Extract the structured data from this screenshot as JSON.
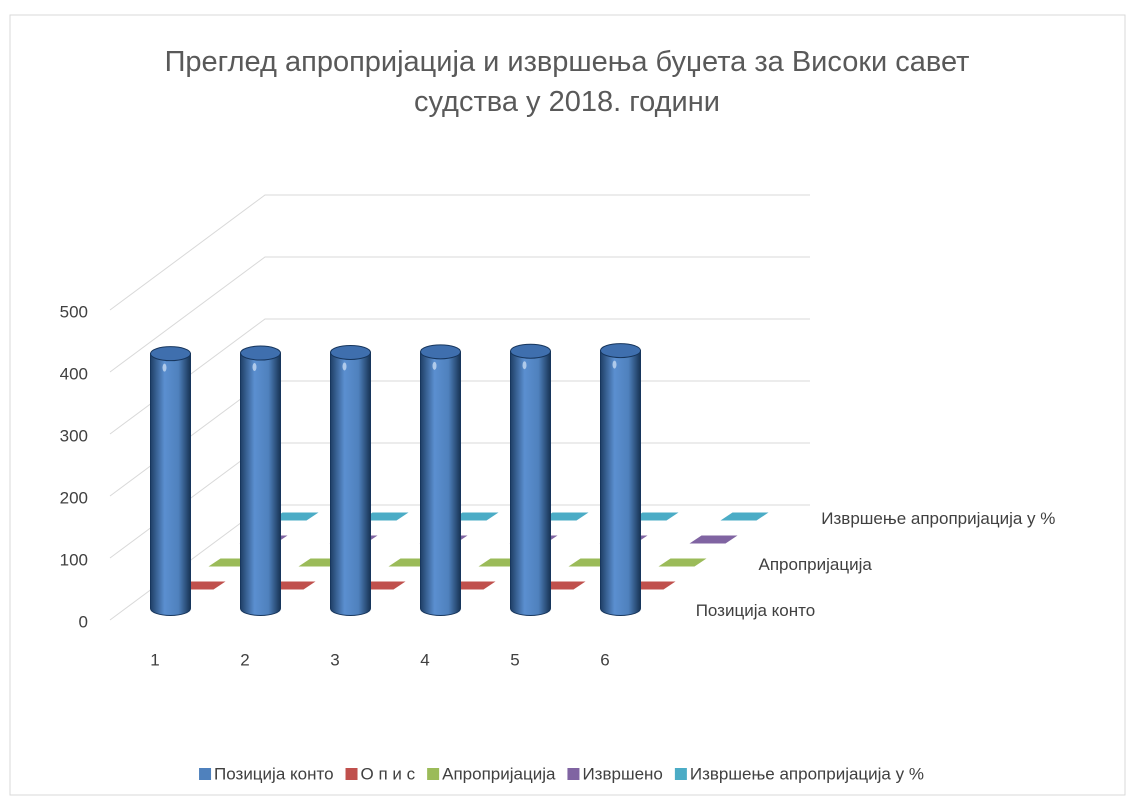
{
  "chart_data": {
    "type": "bar3d",
    "title": "Преглед апропријација и извршења буџета за Високи савет судства у 2018. години",
    "categories": [
      1,
      2,
      3,
      4,
      5,
      6
    ],
    "series": [
      {
        "name": "Позиција конто",
        "color": "#4f81bd",
        "values": [
          411,
          412,
          413,
          414,
          415,
          416
        ]
      },
      {
        "name": "О п и с",
        "color": "#c0504d",
        "values": [
          0,
          0,
          0,
          0,
          0,
          0
        ]
      },
      {
        "name": "Апропријација",
        "color": "#9bbb59",
        "values": [
          0,
          0,
          0,
          0,
          0,
          0
        ]
      },
      {
        "name": "Извршено",
        "color": "#8064a2",
        "values": [
          0,
          0,
          0,
          0,
          0,
          0
        ]
      },
      {
        "name": "Извршење  апропријација у  %",
        "color": "#4bacc6",
        "values": [
          0,
          0,
          0,
          0,
          0,
          0
        ]
      }
    ],
    "ylim": [
      0,
      500
    ],
    "yticks": [
      0,
      100,
      200,
      300,
      400,
      500
    ],
    "grid": true,
    "legend": "bottom"
  }
}
